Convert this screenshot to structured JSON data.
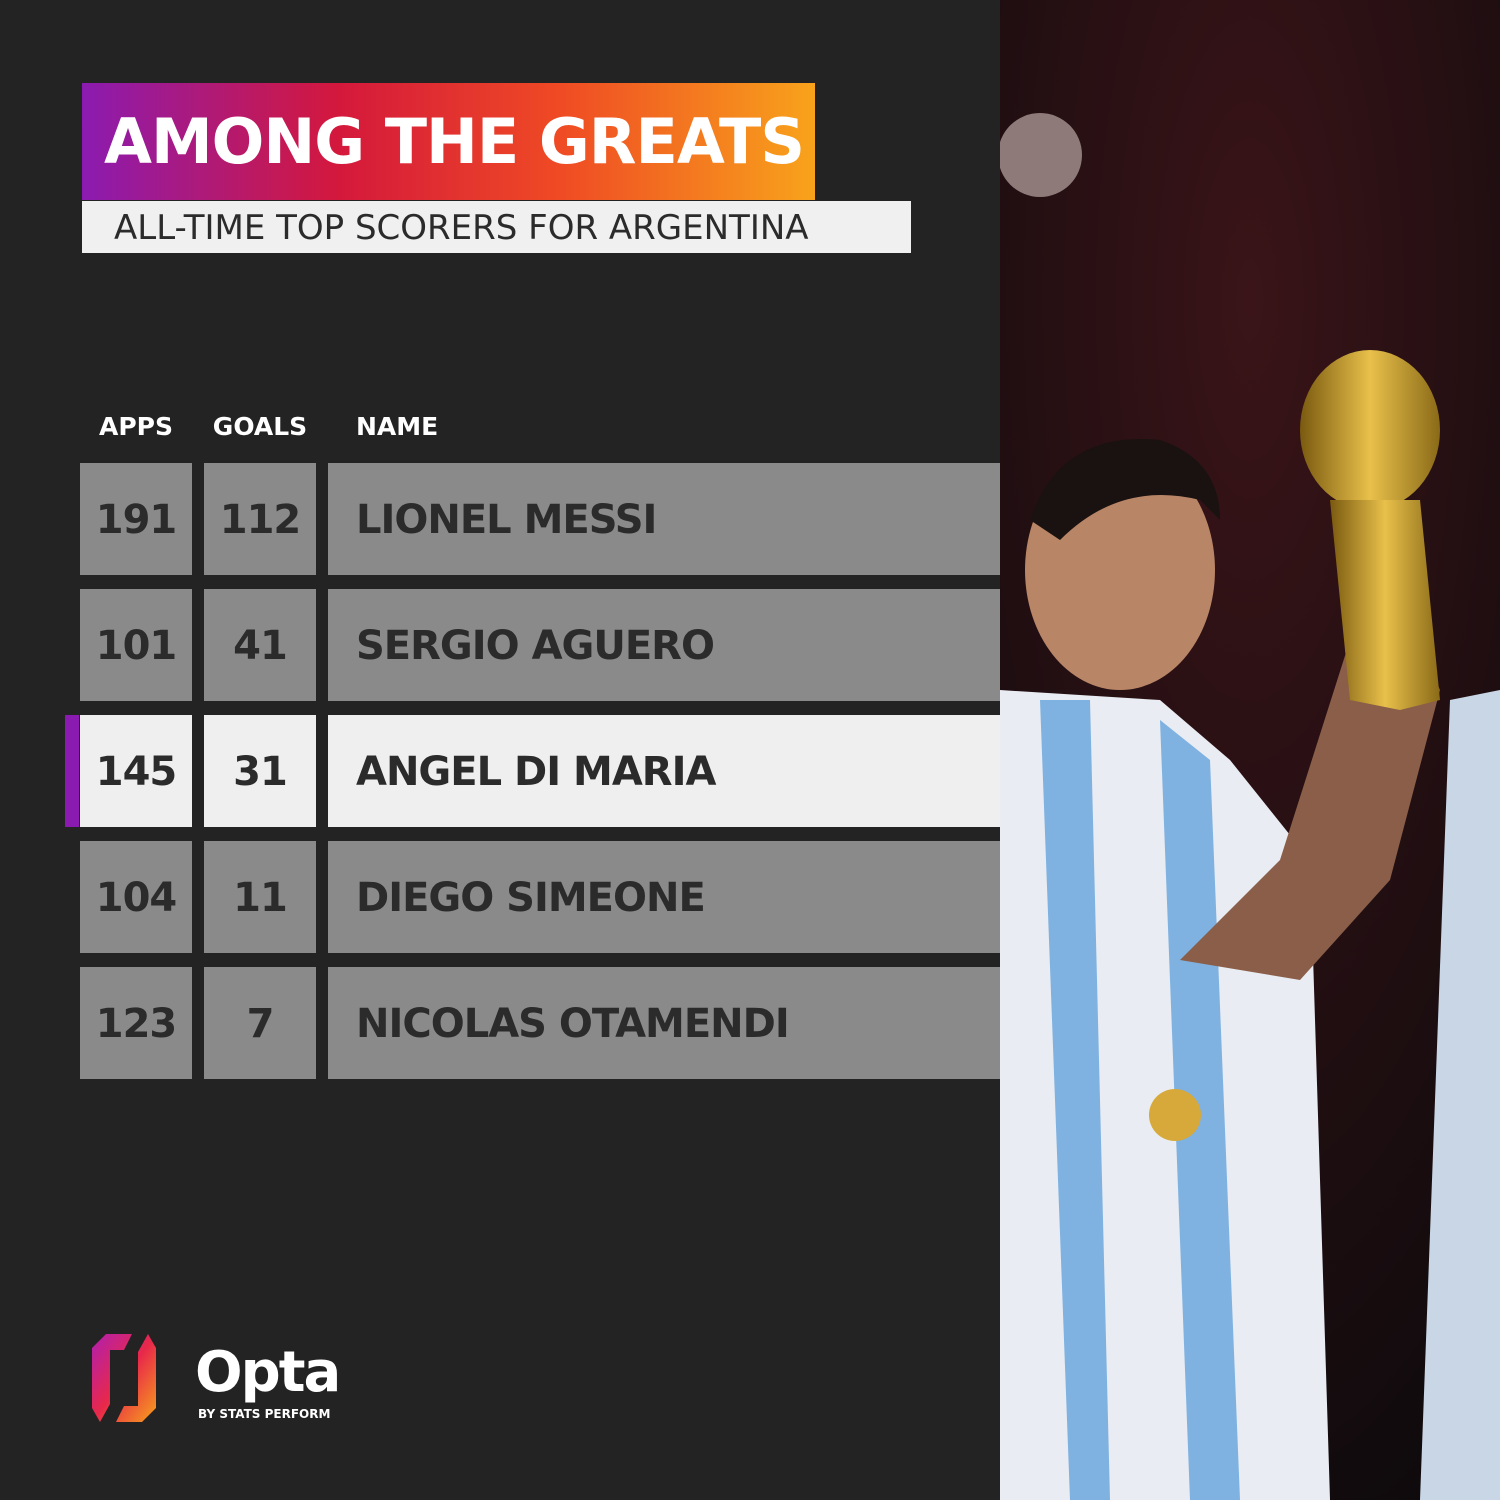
{
  "header": {
    "title": "AMONG THE GREATS",
    "subtitle": "ALL-TIME TOP SCORERS FOR ARGENTINA"
  },
  "table": {
    "columns": [
      "APPS",
      "GOALS",
      "NAME"
    ],
    "rows": [
      [
        191,
        112,
        "LIONEL MESSI"
      ],
      [
        101,
        41,
        "SERGIO AGUERO"
      ],
      [
        145,
        31,
        "ANGEL DI MARIA"
      ],
      [
        104,
        11,
        "DIEGO SIMEONE"
      ],
      [
        123,
        7,
        "NICOLAS OTAMENDI"
      ]
    ],
    "highlight_row": 2
  },
  "logo": {
    "name": "Opta",
    "tagline": "BY STATS PERFORM"
  }
}
